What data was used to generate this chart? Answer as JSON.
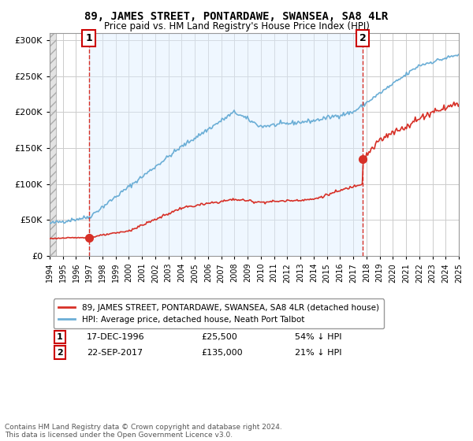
{
  "title": "89, JAMES STREET, PONTARDAWE, SWANSEA, SA8 4LR",
  "subtitle": "Price paid vs. HM Land Registry's House Price Index (HPI)",
  "ylim": [
    0,
    310000
  ],
  "yticks": [
    0,
    50000,
    100000,
    150000,
    200000,
    250000,
    300000
  ],
  "ytick_labels": [
    "£0",
    "£50K",
    "£100K",
    "£150K",
    "£200K",
    "£250K",
    "£300K"
  ],
  "x_start_year": 1994,
  "x_end_year": 2025,
  "sale1_date": 1996.96,
  "sale1_price": 25500,
  "sale1_label": "1",
  "sale2_date": 2017.72,
  "sale2_price": 135000,
  "sale2_label": "2",
  "hpi_color": "#6baed6",
  "price_color": "#d73027",
  "marker_color": "#d73027",
  "background_color": "#ffffff",
  "grid_color": "#cccccc",
  "legend_text1": "89, JAMES STREET, PONTARDAWE, SWANSEA, SA8 4LR (detached house)",
  "legend_text2": "HPI: Average price, detached house, Neath Port Talbot",
  "annotation1_date": "17-DEC-1996",
  "annotation1_price": "£25,500",
  "annotation1_pct": "54% ↓ HPI",
  "annotation2_date": "22-SEP-2017",
  "annotation2_price": "£135,000",
  "annotation2_pct": "21% ↓ HPI",
  "footer": "Contains HM Land Registry data © Crown copyright and database right 2024.\nThis data is licensed under the Open Government Licence v3.0."
}
